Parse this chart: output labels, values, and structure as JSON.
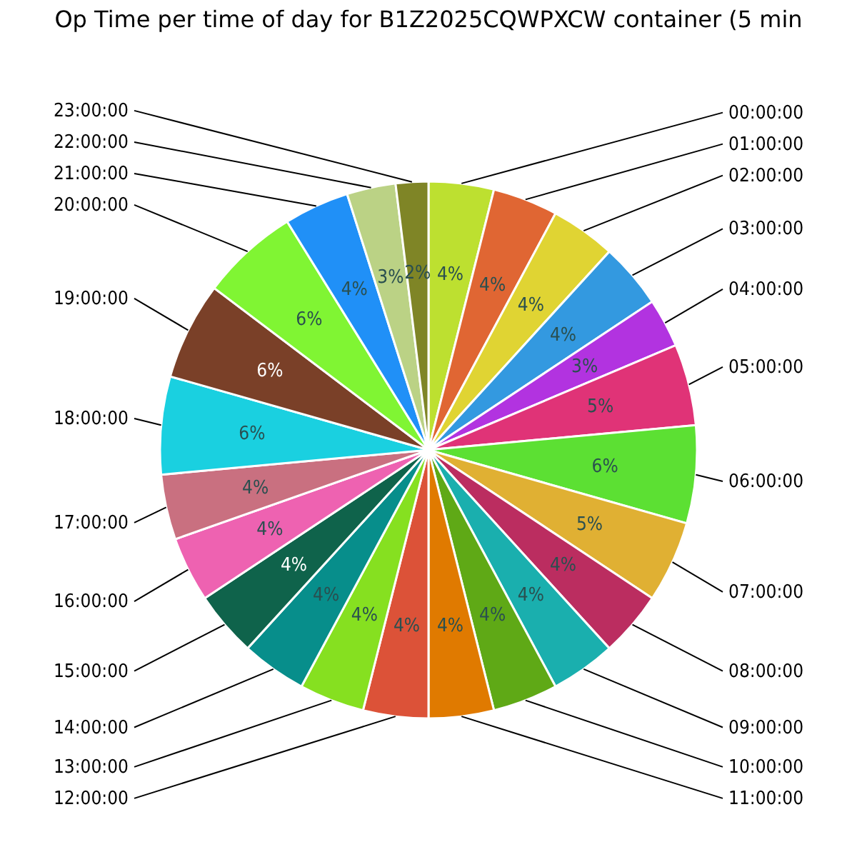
{
  "chart_data": {
    "type": "pie",
    "title": "Op Time per time of day for B1Z2025CQWPXCW container (5 min",
    "categories": [
      "00:00:00",
      "01:00:00",
      "02:00:00",
      "03:00:00",
      "04:00:00",
      "05:00:00",
      "06:00:00",
      "07:00:00",
      "08:00:00",
      "09:00:00",
      "10:00:00",
      "11:00:00",
      "12:00:00",
      "13:00:00",
      "14:00:00",
      "15:00:00",
      "16:00:00",
      "17:00:00",
      "18:00:00",
      "19:00:00",
      "20:00:00",
      "21:00:00",
      "22:00:00",
      "23:00:00"
    ],
    "values": [
      4,
      4,
      4,
      4,
      3,
      5,
      6,
      5,
      4,
      4,
      4,
      4,
      4,
      4,
      4,
      4,
      4,
      4,
      6,
      6,
      6,
      4,
      3,
      2
    ],
    "value_labels": [
      "4%",
      "4%",
      "4%",
      "4%",
      "3%",
      "5%",
      "6%",
      "5%",
      "4%",
      "4%",
      "4%",
      "4%",
      "4%",
      "4%",
      "4%",
      "4%",
      "4%",
      "4%",
      "6%",
      "6%",
      "6%",
      "4%",
      "3%",
      "2%"
    ],
    "colors": [
      "#bde030",
      "#e06633",
      "#e0d433",
      "#3399e0",
      "#b233e0",
      "#e03377",
      "#5ce033",
      "#e0b033",
      "#bb2d60",
      "#1aafae",
      "#5fa916",
      "#e07a00",
      "#dc5238",
      "#86e020",
      "#078e8b",
      "#0f634b",
      "#ee62b1",
      "#c97080",
      "#1ad0e0",
      "#7a4028",
      "#80f533",
      "#2090f7",
      "#bbd285",
      "#7f8526"
    ],
    "legend": false
  }
}
